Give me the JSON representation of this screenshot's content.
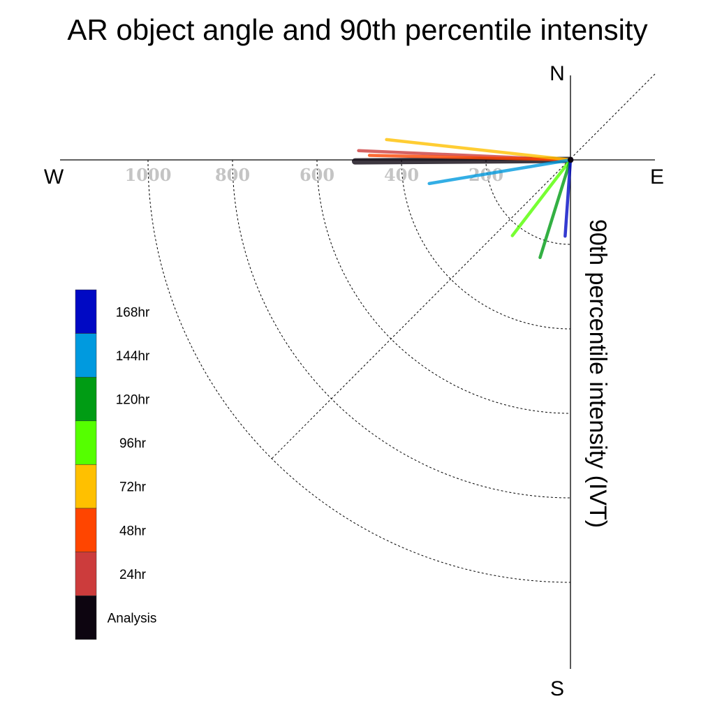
{
  "chart_data": {
    "type": "polar-line",
    "title": "AR object angle and 90th percentile intensity",
    "ylabel": "90th percentile intensity (IVT)",
    "compass": {
      "north": "N",
      "south": "S",
      "east": "E",
      "west": "W"
    },
    "radial_ticks": [
      {
        "value": 200,
        "label": "200"
      },
      {
        "value": 400,
        "label": "400"
      },
      {
        "value": 600,
        "label": "600"
      },
      {
        "value": 800,
        "label": "800"
      },
      {
        "value": 1000,
        "label": "1000"
      }
    ],
    "radial_range": [
      0,
      1200
    ],
    "grid": true,
    "legend_position": "left",
    "series": [
      {
        "name": "Analysis",
        "color": "#0d0510",
        "angle_deg": 180.4,
        "intensity": 510
      },
      {
        "name": "24hr",
        "color": "#cc3c3c",
        "angle_deg": 177.5,
        "intensity": 502
      },
      {
        "name": "48hr",
        "color": "#ff4500",
        "angle_deg": 178.7,
        "intensity": 476
      },
      {
        "name": "72hr",
        "color": "#ffc000",
        "angle_deg": 173.7,
        "intensity": 438
      },
      {
        "name": "96hr",
        "color": "#55ff00",
        "angle_deg": 232.5,
        "intensity": 226
      },
      {
        "name": "120hr",
        "color": "#009c14",
        "angle_deg": 252.7,
        "intensity": 242
      },
      {
        "name": "144hr",
        "color": "#009adf",
        "angle_deg": 189.5,
        "intensity": 339
      },
      {
        "name": "168hr",
        "color": "#0009c4",
        "angle_deg": 266.0,
        "intensity": 181
      }
    ]
  }
}
